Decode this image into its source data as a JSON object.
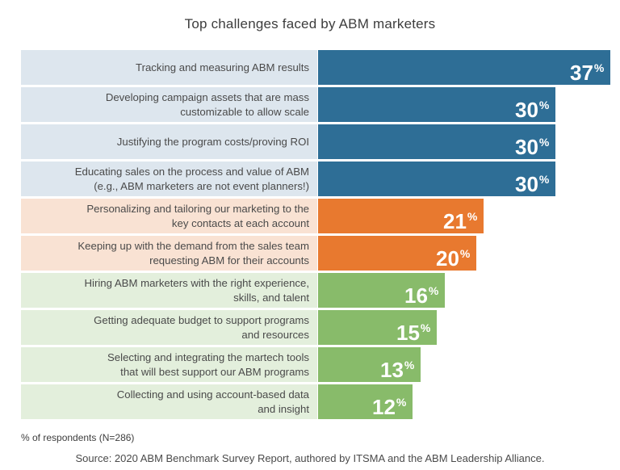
{
  "chart_data": {
    "type": "bar",
    "orientation": "horizontal",
    "title": "Top challenges faced by ABM marketers",
    "value_suffix": "%",
    "categories": [
      "Tracking and measuring ABM results",
      "Developing campaign assets that are mass customizable to allow scale",
      "Justifying the program costs/proving ROI",
      "Educating sales on the process and value of ABM (e.g., ABM marketers are not event planners!)",
      "Personalizing and tailoring our marketing to the key contacts at each account",
      "Keeping up with the demand from the sales team requesting ABM for their accounts",
      "Hiring ABM marketers with the right experience, skills, and talent",
      "Getting adequate budget to support programs and resources",
      "Selecting and integrating the martech tools that will best support our ABM programs",
      "Collecting and using account-based data and insight"
    ],
    "label_lines": [
      [
        "Tracking and measuring ABM results"
      ],
      [
        "Developing campaign assets that are mass",
        "customizable to allow scale"
      ],
      [
        "Justifying the program costs/proving ROI"
      ],
      [
        "Educating sales on the process and value of ABM",
        "(e.g., ABM marketers are not event planners!)"
      ],
      [
        "Personalizing and tailoring our marketing to the",
        "key contacts at each account"
      ],
      [
        "Keeping up with the demand from the sales team",
        "requesting ABM for their accounts"
      ],
      [
        "Hiring ABM marketers with the right experience,",
        "skills, and talent"
      ],
      [
        "Getting adequate budget to support programs",
        "and resources"
      ],
      [
        "Selecting and integrating the martech tools",
        "that will best support our ABM programs"
      ],
      [
        "Collecting and using account-based data",
        "and insight"
      ]
    ],
    "values": [
      37,
      30,
      30,
      30,
      21,
      20,
      16,
      15,
      13,
      12
    ],
    "groups": [
      "blue",
      "blue",
      "blue",
      "blue",
      "orange",
      "orange",
      "green",
      "green",
      "green",
      "green"
    ],
    "colors": {
      "blue": {
        "bar": "#2e6e96",
        "label_bg": "#dde6ee"
      },
      "orange": {
        "bar": "#e8792f",
        "label_bg": "#f9e2d3"
      },
      "green": {
        "bar": "#88bb6a",
        "label_bg": "#e3efdc"
      }
    },
    "grid": false,
    "legend": "none"
  },
  "footnote": "% of respondents (N=286)",
  "source": "Source: 2020 ABM Benchmark Survey Report, authored by ITSMA and the ABM Leadership Alliance."
}
